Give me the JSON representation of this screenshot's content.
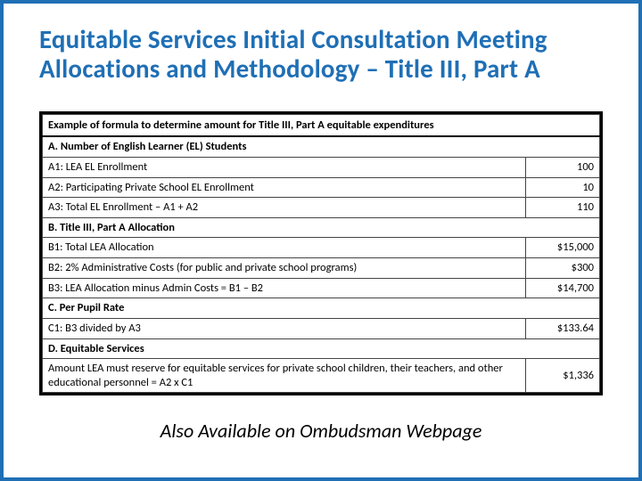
{
  "title": "Equitable Services Initial Consultation Meeting Allocations and Methodology – Title III, Part A",
  "footer": "Also Available on Ombudsman Webpage",
  "table": {
    "header": "Example of formula to determine amount for Title III, Part A equitable expenditures",
    "sections": {
      "a": {
        "label": "A.   Number of English Learner (EL) Students",
        "rows": [
          {
            "label": "A1: LEA EL Enrollment",
            "value": "100"
          },
          {
            "label": "A2: Participating Private School EL Enrollment",
            "value": "10"
          },
          {
            "label": "A3: Total EL Enrollment – A1 + A2",
            "value": "110"
          }
        ]
      },
      "b": {
        "label": "B.   Title III, Part A Allocation",
        "rows": [
          {
            "label": "B1: Total LEA Allocation",
            "value": "$15,000"
          },
          {
            "label": "B2: 2% Administrative Costs (for public and private school programs)",
            "value": "$300"
          },
          {
            "label": "B3: LEA Allocation minus Admin Costs = B1 – B2",
            "value": "$14,700"
          }
        ]
      },
      "c": {
        "label": "C.   Per Pupil Rate",
        "rows": [
          {
            "label": "C1: B3 divided by A3",
            "value": "$133.64"
          }
        ]
      },
      "d": {
        "label": "D.   Equitable Services",
        "rows": [
          {
            "label": "Amount LEA must reserve for equitable services for private school children, their teachers, and other educational personnel = A2 x C1",
            "value": "$1,336"
          }
        ]
      }
    }
  },
  "colors": {
    "border": "#1f6fb5",
    "title": "#1f6fb5",
    "table_border": "#000000",
    "cell_border": "#444444",
    "text": "#000000",
    "background": "#ffffff"
  },
  "typography": {
    "title_fontsize": 29,
    "title_weight": 600,
    "table_fontsize": 12.5,
    "footer_fontsize": 22,
    "footer_style": "italic",
    "font_family": "Calibri"
  },
  "layout": {
    "slide_width": 720,
    "slide_height": 540,
    "outer_border_width": 4,
    "table_outer_border_width": 3
  }
}
